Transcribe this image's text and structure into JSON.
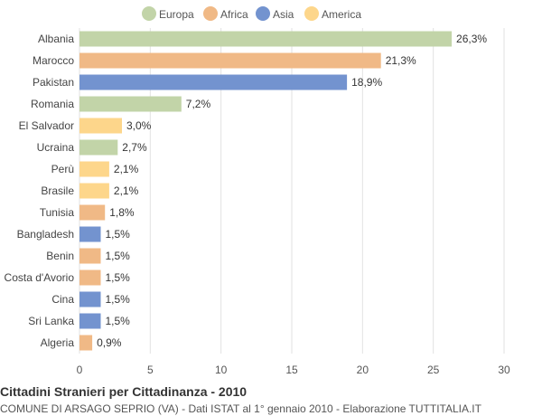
{
  "chart_data": {
    "type": "bar",
    "orientation": "horizontal",
    "title": "Cittadini Stranieri per Cittadinanza - 2010",
    "subtitle": "COMUNE DI ARSAGO SEPRIO (VA) - Dati ISTAT al 1° gennaio 2010 - Elaborazione TUTTITALIA.IT",
    "xlim": [
      0,
      30
    ],
    "xticks": [
      0,
      5,
      10,
      15,
      20,
      25,
      30
    ],
    "grid": true,
    "legend_position": "top",
    "legend": [
      {
        "name": "Europa",
        "color": "#c2d4a8"
      },
      {
        "name": "Africa",
        "color": "#f0b986"
      },
      {
        "name": "Asia",
        "color": "#7393cf"
      },
      {
        "name": "America",
        "color": "#fdd68b"
      }
    ],
    "bars": [
      {
        "category": "Albania",
        "value": 26.3,
        "label": "26,3%",
        "group": "Europa"
      },
      {
        "category": "Marocco",
        "value": 21.3,
        "label": "21,3%",
        "group": "Africa"
      },
      {
        "category": "Pakistan",
        "value": 18.9,
        "label": "18,9%",
        "group": "Asia"
      },
      {
        "category": "Romania",
        "value": 7.2,
        "label": "7,2%",
        "group": "Europa"
      },
      {
        "category": "El Salvador",
        "value": 3.0,
        "label": "3,0%",
        "group": "America"
      },
      {
        "category": "Ucraina",
        "value": 2.7,
        "label": "2,7%",
        "group": "Europa"
      },
      {
        "category": "Perù",
        "value": 2.1,
        "label": "2,1%",
        "group": "America"
      },
      {
        "category": "Brasile",
        "value": 2.1,
        "label": "2,1%",
        "group": "America"
      },
      {
        "category": "Tunisia",
        "value": 1.8,
        "label": "1,8%",
        "group": "Africa"
      },
      {
        "category": "Bangladesh",
        "value": 1.5,
        "label": "1,5%",
        "group": "Asia"
      },
      {
        "category": "Benin",
        "value": 1.5,
        "label": "1,5%",
        "group": "Africa"
      },
      {
        "category": "Costa d'Avorio",
        "value": 1.5,
        "label": "1,5%",
        "group": "Africa"
      },
      {
        "category": "Cina",
        "value": 1.5,
        "label": "1,5%",
        "group": "Asia"
      },
      {
        "category": "Sri Lanka",
        "value": 1.5,
        "label": "1,5%",
        "group": "Asia"
      },
      {
        "category": "Algeria",
        "value": 0.9,
        "label": "0,9%",
        "group": "Africa"
      }
    ]
  }
}
